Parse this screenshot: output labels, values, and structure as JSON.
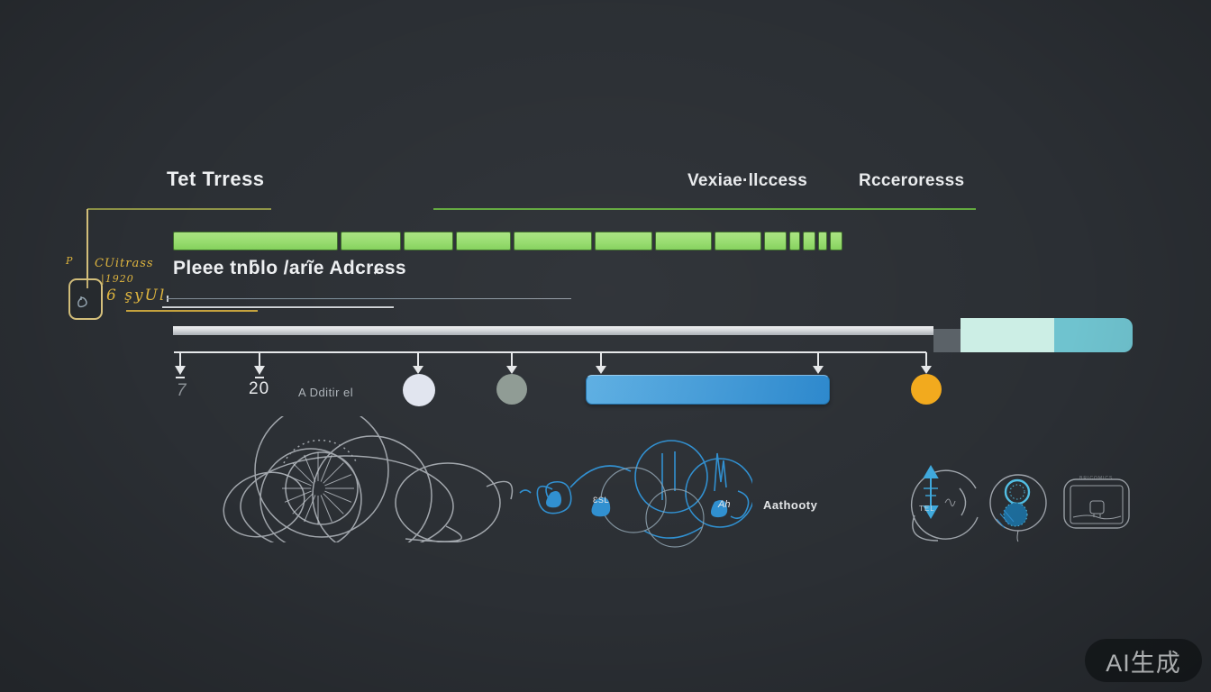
{
  "colors": {
    "background": "#2b2f34",
    "accent_green": "#97dc6e",
    "green_rule": "#62a93e",
    "olive_rule": "#8f9447",
    "annotation_yellow": "#e0b63f",
    "bracket_yellow": "#d9c47e",
    "blue": "#2f8fd0",
    "pill_from": "#5caee2",
    "pill_to": "#2b87cc",
    "orange": "#f2a91c",
    "mint": "#cceee5",
    "teal": "#6fc3cf",
    "dark_segment": "#5a6167",
    "track_gray": "#d6d9dc"
  },
  "header": {
    "left_title": "Tet Trress",
    "mid_title": "Vexiae·llccess",
    "right_title": "Rcceroresss"
  },
  "annotation": {
    "mark": "P",
    "line1": "CUitrass",
    "line2": "|1920",
    "line3": "6 şyUl"
  },
  "green_bar": {
    "segments": [
      183,
      67,
      55,
      61,
      87,
      64,
      63,
      52,
      25,
      12,
      14,
      10,
      14
    ]
  },
  "subtitle": "Pleee tnƃlo /arĩe Adcrɕss",
  "timeline": {
    "label_7": "7",
    "label_20": "20",
    "label_note": "A Dditir el",
    "milestone_colors": [
      "#e1e5ef",
      "#8e9a93",
      "#f2a91c"
    ]
  },
  "sketch_labels": {
    "esl": "ƐSL",
    "ah": "Ah",
    "authority": "Aathooty",
    "tel": "TEL",
    "tv": "BRICOMICS"
  },
  "watermark": "AI生成"
}
